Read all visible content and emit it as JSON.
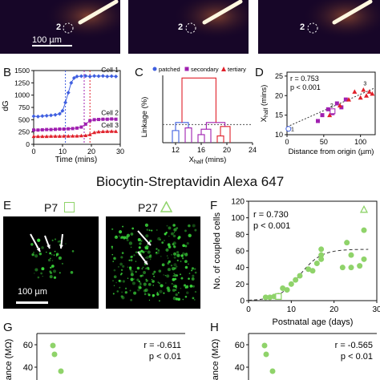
{
  "top_row": {
    "scale_bar_label": "100 µm",
    "cell_marker": "2"
  },
  "heading": "Biocytin-Streptavidin Alexa 647",
  "panelB": {
    "letter": "B",
    "ylabel": "dG",
    "xlabel": "Time (mins)",
    "x_ticks": [
      "0",
      "10",
      "20",
      "30"
    ],
    "y_ticks": [
      "0",
      "250",
      "500",
      "750",
      "1000",
      "1250",
      "1500"
    ],
    "cell_labels": [
      "Cell 1",
      "Cell 2",
      "Cell 3"
    ]
  },
  "panelC": {
    "letter": "C",
    "ylabel": "Linkage (%)",
    "xlabel": "X",
    "xlabel_sub": "half",
    "xlabel_unit": " (mins)",
    "x_ticks": [
      "12",
      "16",
      "20",
      "24"
    ],
    "legend": [
      "patched",
      "secondary",
      "tertiary"
    ]
  },
  "panelD": {
    "letter": "D",
    "ylabel": "X",
    "ylabel_sub": "half",
    "ylabel_unit": " (mins)",
    "xlabel": "Distance from origin (µm)",
    "x_ticks": [
      "0",
      "50",
      "100"
    ],
    "y_ticks": [
      "10",
      "15",
      "20",
      "25"
    ],
    "stat_r": "r = 0.753",
    "stat_p": "p < 0.001",
    "point_labels": [
      "1",
      "2",
      "3"
    ]
  },
  "panelE": {
    "letter": "E",
    "label_p7": "P7",
    "label_p27": "P27",
    "scale_bar_label": "100 µm"
  },
  "panelF": {
    "letter": "F",
    "ylabel": "No. of coupled cells",
    "xlabel": "Postnatal age (days)",
    "x_ticks": [
      "0",
      "10",
      "20",
      "30"
    ],
    "y_ticks": [
      "0",
      "20",
      "40",
      "60",
      "80",
      "100",
      "120"
    ],
    "stat_r": "r = 0.730",
    "stat_p": "p < 0.001"
  },
  "panelG": {
    "letter": "G",
    "ylabel": "tance (MΩ)",
    "y_ticks": [
      "60",
      "40"
    ],
    "stat_r": "r = -0.611",
    "stat_p": "p < 0.01"
  },
  "panelH": {
    "letter": "H",
    "ylabel": "tance (MΩ)",
    "y_ticks": [
      "60",
      "40"
    ],
    "stat_r": "r = -0.565",
    "stat_p": "p < 0.01"
  },
  "colors": {
    "blue": "#3f5fe0",
    "purple": "#a020b0",
    "red": "#e0202a",
    "green": "#8fd36a",
    "axis": "#111111"
  },
  "chart_data": [
    {
      "panel": "B",
      "type": "line",
      "xlabel": "Time (mins)",
      "ylabel": "dG",
      "xlim": [
        0,
        30
      ],
      "ylim": [
        0,
        1500
      ],
      "series": [
        {
          "name": "Cell 1",
          "x": [
            0,
            1.5,
            3,
            4.5,
            6,
            7.5,
            9,
            10,
            11,
            12,
            13,
            14,
            15,
            16.5,
            18,
            19.5,
            21,
            22.5,
            24,
            25.5,
            27,
            28.5
          ],
          "y": [
            570,
            565,
            575,
            580,
            590,
            600,
            620,
            680,
            850,
            1050,
            1250,
            1350,
            1380,
            1385,
            1390,
            1380,
            1390,
            1385,
            1390,
            1380,
            1385,
            1380
          ]
        },
        {
          "name": "Cell 2",
          "x": [
            0,
            1.5,
            3,
            4.5,
            6,
            7.5,
            9,
            10.5,
            12,
            13.5,
            15,
            16.5,
            18,
            19.5,
            21,
            22.5,
            24,
            25.5,
            27,
            28.5
          ],
          "y": [
            290,
            290,
            295,
            300,
            300,
            305,
            310,
            310,
            315,
            320,
            330,
            350,
            410,
            480,
            500,
            505,
            510,
            510,
            515,
            510
          ]
        },
        {
          "name": "Cell 3",
          "x": [
            0,
            1.5,
            3,
            4.5,
            6,
            7.5,
            9,
            10.5,
            12,
            13.5,
            15,
            16.5,
            18,
            19.5,
            21,
            22.5,
            24,
            25.5,
            27,
            28.5
          ],
          "y": [
            160,
            160,
            162,
            162,
            165,
            165,
            165,
            168,
            168,
            170,
            170,
            175,
            180,
            200,
            240,
            255,
            260,
            262,
            265,
            262
          ]
        }
      ],
      "vlines": [
        11,
        17.5,
        19.5
      ]
    },
    {
      "panel": "C",
      "type": "dendrogram",
      "xlabel": "Xhalf (mins)",
      "ylabel": "Linkage (%)",
      "xlim": [
        10,
        24
      ],
      "legend": [
        "patched",
        "secondary",
        "tertiary"
      ],
      "threshold": 27
    },
    {
      "panel": "D",
      "type": "scatter",
      "xlabel": "Distance from origin (µm)",
      "ylabel": "Xhalf (mins)",
      "xlim": [
        0,
        120
      ],
      "ylim": [
        10,
        26
      ],
      "series": [
        {
          "name": "patched",
          "x": [
            2
          ],
          "y": [
            11.5
          ]
        },
        {
          "name": "secondary",
          "x": [
            42,
            48,
            56,
            62,
            68,
            74,
            80
          ],
          "y": [
            13.5,
            15,
            16.5,
            15.5,
            18,
            17,
            19
          ]
        },
        {
          "name": "tertiary",
          "x": [
            58,
            72,
            84,
            92,
            100,
            104,
            108,
            112,
            116
          ],
          "y": [
            15,
            17.5,
            19,
            21,
            19.5,
            21.5,
            20,
            21,
            20.5
          ]
        }
      ],
      "r": 0.753,
      "p": "< 0.001"
    },
    {
      "panel": "F",
      "type": "scatter",
      "xlabel": "Postnatal age (days)",
      "ylabel": "No. of coupled cells",
      "xlim": [
        0,
        30
      ],
      "ylim": [
        0,
        120
      ],
      "series": [
        {
          "name": "cells",
          "x": [
            4,
            5,
            6,
            7,
            8,
            9,
            10,
            11,
            12,
            14,
            15,
            16,
            17,
            17,
            17,
            22,
            23,
            24,
            24,
            26,
            27,
            27
          ],
          "y": [
            4,
            4,
            5,
            6,
            15,
            13,
            20,
            25,
            30,
            38,
            36,
            45,
            62,
            55,
            50,
            40,
            70,
            40,
            55,
            42,
            85,
            50
          ]
        }
      ],
      "highlight_square": {
        "x": 7,
        "y": 5
      },
      "highlight_triangle": {
        "x": 27,
        "y": 110
      },
      "r": 0.73,
      "p": "< 0.001"
    },
    {
      "panel": "G",
      "type": "scatter",
      "ylabel": "tance (MΩ)",
      "series": [
        {
          "name": "cells",
          "x": [
            1,
            2,
            3
          ],
          "y": [
            60,
            50,
            40
          ]
        }
      ],
      "r": -0.611,
      "p": "< 0.01"
    },
    {
      "panel": "H",
      "type": "scatter",
      "ylabel": "tance (MΩ)",
      "series": [
        {
          "name": "cells",
          "x": [
            1,
            2,
            3
          ],
          "y": [
            60,
            50,
            40
          ]
        }
      ],
      "r": -0.565,
      "p": "< 0.01"
    }
  ]
}
